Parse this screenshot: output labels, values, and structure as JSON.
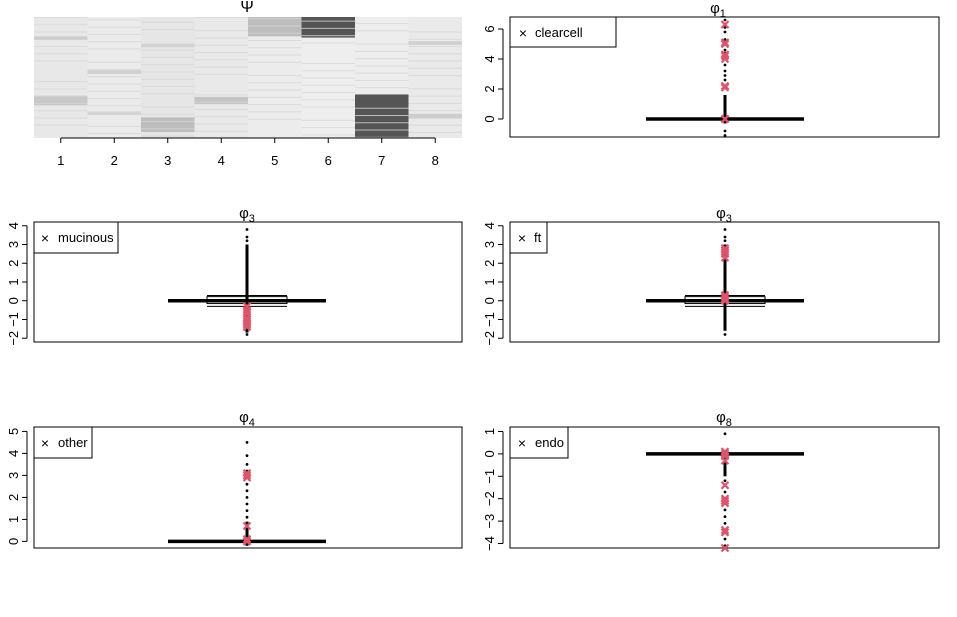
{
  "chart_data": [
    {
      "type": "heatmap",
      "title": "Ψ",
      "categories": [
        "1",
        "2",
        "3",
        "4",
        "5",
        "6",
        "7",
        "8"
      ],
      "bands": [
        {
          "col": 1,
          "from": 0.0,
          "to": 1.0,
          "shade": "#e8e8e8"
        },
        {
          "col": 2,
          "from": 0.0,
          "to": 1.0,
          "shade": "#ebebeb"
        },
        {
          "col": 3,
          "from": 0.0,
          "to": 1.0,
          "shade": "#e6e6e6"
        },
        {
          "col": 4,
          "from": 0.0,
          "to": 1.0,
          "shade": "#e9e9e9"
        },
        {
          "col": 5,
          "from": 0.0,
          "to": 1.0,
          "shade": "#ececec"
        },
        {
          "col": 6,
          "from": 0.0,
          "to": 1.0,
          "shade": "#eeeeee"
        },
        {
          "col": 7,
          "from": 0.0,
          "to": 1.0,
          "shade": "#ededed"
        },
        {
          "col": 8,
          "from": 0.0,
          "to": 1.0,
          "shade": "#eaeaea"
        },
        {
          "col": 6,
          "from": 0.0,
          "to": 0.17,
          "shade": "#555555"
        },
        {
          "col": 7,
          "from": 0.64,
          "to": 1.0,
          "shade": "#555555"
        },
        {
          "col": 5,
          "from": 0.0,
          "to": 0.16,
          "shade": "#bdbdbd"
        },
        {
          "col": 3,
          "from": 0.83,
          "to": 0.95,
          "shade": "#bdbdbd"
        },
        {
          "col": 1,
          "from": 0.65,
          "to": 0.73,
          "shade": "#c8c8c8"
        },
        {
          "col": 4,
          "from": 0.66,
          "to": 0.72,
          "shade": "#c4c4c4"
        },
        {
          "col": 1,
          "from": 0.16,
          "to": 0.19,
          "shade": "#cccccc"
        },
        {
          "col": 2,
          "from": 0.44,
          "to": 0.47,
          "shade": "#cfcfcf"
        },
        {
          "col": 3,
          "from": 0.22,
          "to": 0.25,
          "shade": "#d2d2d2"
        },
        {
          "col": 8,
          "from": 0.2,
          "to": 0.23,
          "shade": "#d0d0d0"
        },
        {
          "col": 8,
          "from": 0.8,
          "to": 0.84,
          "shade": "#cdcdcd"
        },
        {
          "col": 2,
          "from": 0.78,
          "to": 0.81,
          "shade": "#d4d4d4"
        }
      ]
    },
    {
      "type": "scatter",
      "title": "φ",
      "title_sub": "1",
      "legend": {
        "label": "clearcell",
        "position": "top-left",
        "marker": "×"
      },
      "ylim": [
        -1.2,
        6.8
      ],
      "yticks": [
        0,
        2,
        4,
        6
      ],
      "box": {
        "q1": 0,
        "q3": 0,
        "lo": 0,
        "hi": 0
      },
      "whisker_up": 1.6,
      "whisker_dn": -0.3,
      "outliers": [
        -1.1,
        -0.8,
        2.6,
        2.9,
        3.2,
        3.6,
        4.4,
        4.6,
        5.3,
        5.8,
        6.1,
        6.6
      ],
      "highlight": [
        0.0,
        0.0,
        2.1,
        2.2,
        4.0,
        4.2,
        4.3,
        5.0,
        5.1,
        6.3
      ]
    },
    {
      "type": "scatter",
      "title": "φ",
      "title_sub": "3",
      "legend": {
        "label": "mucinous",
        "position": "top-left",
        "marker": "×"
      },
      "ylim": [
        -2.2,
        4.2
      ],
      "yticks": [
        -2,
        -1,
        0,
        1,
        2,
        3,
        4
      ],
      "box": {
        "q1": -0.15,
        "q3": 0.22,
        "lo": -0.3,
        "hi": 0.28
      },
      "whisker_up": 3.0,
      "whisker_dn": -1.7,
      "outliers": [
        3.2,
        3.4,
        3.8,
        -1.8
      ],
      "highlight": [
        -0.3,
        -0.5,
        -0.6,
        -0.7,
        -0.9,
        -1.0,
        -1.1,
        -1.2,
        -1.3,
        -1.4
      ]
    },
    {
      "type": "scatter",
      "title": "φ",
      "title_sub": "3",
      "legend": {
        "label": "ft",
        "position": "top-left",
        "marker": "×"
      },
      "ylim": [
        -2.2,
        4.2
      ],
      "yticks": [
        -2,
        -1,
        0,
        1,
        2,
        3,
        4
      ],
      "box": {
        "q1": -0.15,
        "q3": 0.22,
        "lo": -0.3,
        "hi": 0.28
      },
      "whisker_up": 3.0,
      "whisker_dn": -1.6,
      "outliers": [
        3.2,
        3.4,
        3.8,
        -1.8
      ],
      "highlight": [
        0.0,
        0.1,
        0.2,
        0.3,
        2.3,
        2.5,
        2.6,
        2.7,
        2.8
      ]
    },
    {
      "type": "scatter",
      "title": "φ",
      "title_sub": "4",
      "legend": {
        "label": "other",
        "position": "top-left",
        "marker": "×"
      },
      "ylim": [
        -0.3,
        5.2
      ],
      "yticks": [
        0,
        1,
        2,
        3,
        4,
        5
      ],
      "box": {
        "q1": 0,
        "q3": 0,
        "lo": 0,
        "hi": 0
      },
      "whisker_up": 0.9,
      "whisker_dn": -0.2,
      "outliers": [
        1.1,
        1.4,
        1.7,
        2.0,
        2.3,
        2.6,
        3.2,
        3.5,
        3.9,
        4.5
      ],
      "highlight": [
        0.0,
        0.0,
        0.1,
        0.7,
        2.9,
        3.0,
        3.1
      ]
    },
    {
      "type": "scatter",
      "title": "φ",
      "title_sub": "8",
      "legend": {
        "label": "endo",
        "position": "top-left",
        "marker": "×"
      },
      "ylim": [
        -4.2,
        1.2
      ],
      "yticks": [
        -4,
        -3,
        -2,
        -1,
        0,
        1
      ],
      "box": {
        "q1": 0,
        "q3": 0,
        "lo": 0,
        "hi": 0
      },
      "whisker_up": 0.1,
      "whisker_dn": -1.0,
      "outliers": [
        0.9,
        -1.2,
        -1.7,
        -2.5,
        -2.8,
        -3.1,
        -3.8,
        -4.1
      ],
      "highlight": [
        0.1,
        0.0,
        -0.1,
        -0.3,
        -1.4,
        -2.0,
        -2.1,
        -2.2,
        -3.4,
        -3.5,
        -4.2
      ]
    }
  ],
  "colors": {
    "highlight": "#df536b",
    "ink": "#000000"
  }
}
